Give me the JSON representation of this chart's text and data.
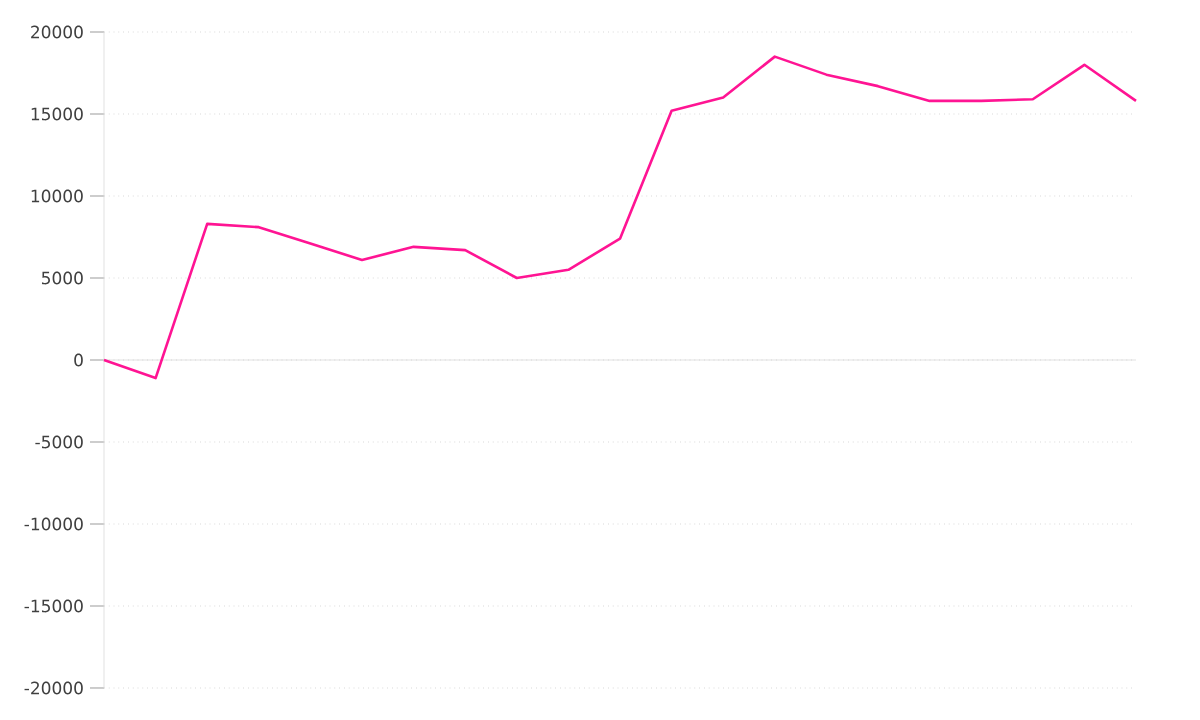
{
  "chart_data": {
    "type": "line",
    "categories": [
      null,
      null,
      null,
      null,
      null,
      null,
      null,
      null,
      null,
      null,
      null,
      null,
      null,
      null,
      null,
      null,
      null,
      null,
      null,
      null,
      null
    ],
    "values": [
      0,
      -1100,
      8300,
      8100,
      7100,
      6100,
      6900,
      6700,
      5000,
      5500,
      7400,
      15200,
      16000,
      18500,
      17400,
      16700,
      15800,
      15800,
      15900,
      18000,
      15800
    ],
    "color": "#ff1493",
    "ylim": [
      -20000,
      20000
    ],
    "yticks": [
      -20000,
      -15000,
      -10000,
      -5000,
      0,
      5000,
      10000,
      15000,
      20000
    ],
    "tick_labels": "y",
    "grid": "y",
    "marker": "none",
    "line_style": "solid"
  }
}
